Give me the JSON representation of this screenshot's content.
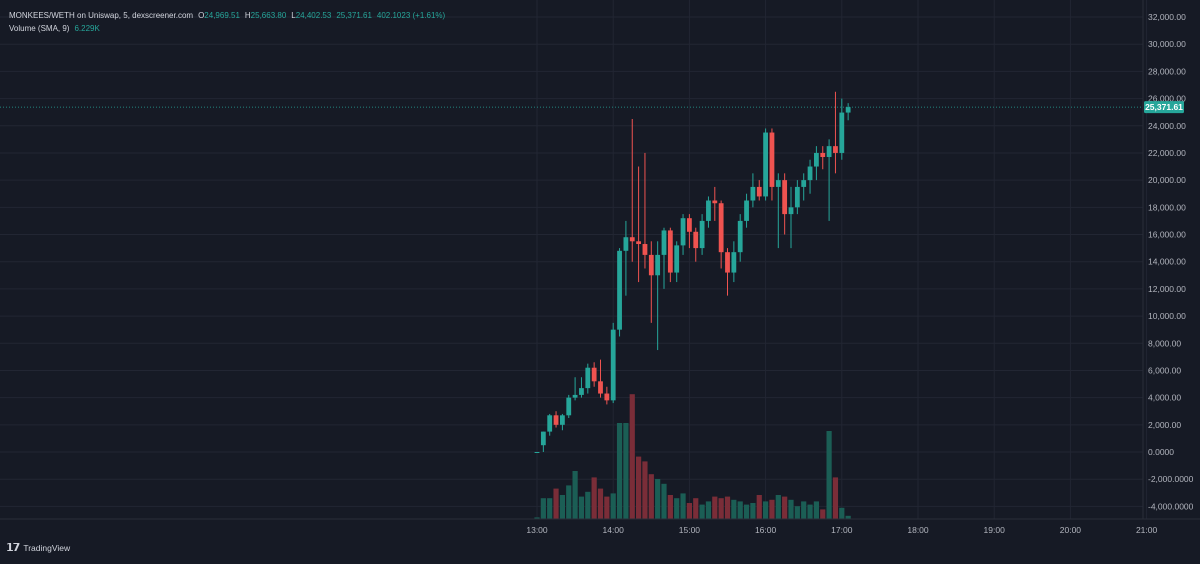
{
  "header": {
    "pair": "MONKEES/WETH on Uniswap, 5, dexscreener.com",
    "o_label": "O",
    "o_value": "24,969.51",
    "h_label": "H",
    "h_value": "25,663.80",
    "l_label": "L",
    "l_value": "24,402.53",
    "c_value": "25,371.61",
    "change": "402.1023 (+1.61%)",
    "volume_label": "Volume (SMA, 9)",
    "volume_value": "6.229K"
  },
  "price_tag": "25,371.61",
  "brand": {
    "name": "TradingView",
    "icon": "tradingview-logo-icon"
  },
  "colors": {
    "up": "#26a69a",
    "down": "#ef5350",
    "vol_up": "#1b5e55",
    "vol_down": "#7a2d38",
    "background": "#161a25"
  },
  "chart_data": {
    "type": "candlestick",
    "interval_minutes": 5,
    "xlabels": [
      "13:00",
      "14:00",
      "15:00",
      "16:00",
      "17:00",
      "18:00",
      "19:00",
      "20:00",
      "21:00"
    ],
    "ylabels": [
      "32,000.00",
      "30,000.00",
      "28,000.00",
      "26,000.00",
      "24,000.00",
      "22,000.00",
      "20,000.00",
      "18,000.00",
      "16,000.00",
      "14,000.00",
      "12,000.00",
      "10,000.00",
      "8,000.00",
      "6,000.00",
      "4,000.00",
      "2,000.00",
      "0.0000",
      "-2,000.0000",
      "-4,000.0000"
    ],
    "ylim": [
      -4500,
      32500
    ],
    "last_price": 25371.61,
    "candles": [
      {
        "t": "13:00",
        "o": 0,
        "h": 0,
        "l": 0,
        "c": 0,
        "v": 0.1
      },
      {
        "t": "13:05",
        "o": 500,
        "h": 1500,
        "l": 0,
        "c": 1500,
        "v": 1.3
      },
      {
        "t": "13:10",
        "o": 1500,
        "h": 2800,
        "l": 1200,
        "c": 2700,
        "v": 1.3
      },
      {
        "t": "13:15",
        "o": 2700,
        "h": 3000,
        "l": 1800,
        "c": 2000,
        "v": 1.9
      },
      {
        "t": "13:20",
        "o": 2000,
        "h": 2800,
        "l": 1600,
        "c": 2700,
        "v": 1.5
      },
      {
        "t": "13:25",
        "o": 2700,
        "h": 4200,
        "l": 2500,
        "c": 4000,
        "v": 2.1
      },
      {
        "t": "13:30",
        "o": 4000,
        "h": 5500,
        "l": 3800,
        "c": 4200,
        "v": 3.0
      },
      {
        "t": "13:35",
        "o": 4200,
        "h": 5500,
        "l": 4000,
        "c": 4700,
        "v": 1.4
      },
      {
        "t": "13:40",
        "o": 4700,
        "h": 6500,
        "l": 4300,
        "c": 6200,
        "v": 1.7
      },
      {
        "t": "13:45",
        "o": 6200,
        "h": 6600,
        "l": 4800,
        "c": 5200,
        "v": 2.6
      },
      {
        "t": "13:50",
        "o": 5200,
        "h": 6800,
        "l": 4000,
        "c": 4300,
        "v": 1.9
      },
      {
        "t": "13:55",
        "o": 4300,
        "h": 4800,
        "l": 3500,
        "c": 3800,
        "v": 1.4
      },
      {
        "t": "14:00",
        "o": 3800,
        "h": 9500,
        "l": 3600,
        "c": 9000,
        "v": 1.6
      },
      {
        "t": "14:05",
        "o": 9000,
        "h": 15000,
        "l": 8500,
        "c": 14800,
        "v": 6.0
      },
      {
        "t": "14:10",
        "o": 14800,
        "h": 17000,
        "l": 11500,
        "c": 15800,
        "v": 6.0
      },
      {
        "t": "14:15",
        "o": 15800,
        "h": 24500,
        "l": 14000,
        "c": 15500,
        "v": 7.8
      },
      {
        "t": "14:20",
        "o": 15500,
        "h": 21000,
        "l": 12500,
        "c": 15300,
        "v": 3.9
      },
      {
        "t": "14:25",
        "o": 15300,
        "h": 22000,
        "l": 13500,
        "c": 14500,
        "v": 3.6
      },
      {
        "t": "14:30",
        "o": 14500,
        "h": 15500,
        "l": 9500,
        "c": 13000,
        "v": 2.8
      },
      {
        "t": "14:35",
        "o": 13000,
        "h": 15500,
        "l": 7500,
        "c": 14500,
        "v": 2.5
      },
      {
        "t": "14:40",
        "o": 14500,
        "h": 16500,
        "l": 12000,
        "c": 16300,
        "v": 2.2
      },
      {
        "t": "14:45",
        "o": 16300,
        "h": 16500,
        "l": 12500,
        "c": 13200,
        "v": 1.5
      },
      {
        "t": "14:50",
        "o": 13200,
        "h": 15500,
        "l": 12500,
        "c": 15200,
        "v": 1.3
      },
      {
        "t": "14:55",
        "o": 15200,
        "h": 17500,
        "l": 14500,
        "c": 17200,
        "v": 1.6
      },
      {
        "t": "15:00",
        "o": 17200,
        "h": 17500,
        "l": 15000,
        "c": 16200,
        "v": 1.0
      },
      {
        "t": "15:05",
        "o": 16200,
        "h": 16500,
        "l": 14000,
        "c": 15000,
        "v": 1.3
      },
      {
        "t": "15:10",
        "o": 15000,
        "h": 17500,
        "l": 14500,
        "c": 17000,
        "v": 0.9
      },
      {
        "t": "15:15",
        "o": 17000,
        "h": 18800,
        "l": 16500,
        "c": 18500,
        "v": 1.1
      },
      {
        "t": "15:20",
        "o": 18500,
        "h": 19500,
        "l": 17000,
        "c": 18300,
        "v": 1.4
      },
      {
        "t": "15:25",
        "o": 18300,
        "h": 18500,
        "l": 13500,
        "c": 14700,
        "v": 1.3
      },
      {
        "t": "15:30",
        "o": 14700,
        "h": 15000,
        "l": 11500,
        "c": 13200,
        "v": 1.4
      },
      {
        "t": "15:35",
        "o": 13200,
        "h": 15500,
        "l": 12500,
        "c": 14700,
        "v": 1.2
      },
      {
        "t": "15:40",
        "o": 14700,
        "h": 17500,
        "l": 14000,
        "c": 17000,
        "v": 1.1
      },
      {
        "t": "15:45",
        "o": 17000,
        "h": 19000,
        "l": 16500,
        "c": 18500,
        "v": 0.9
      },
      {
        "t": "15:50",
        "o": 18500,
        "h": 20500,
        "l": 18000,
        "c": 19500,
        "v": 1.0
      },
      {
        "t": "15:55",
        "o": 19500,
        "h": 20000,
        "l": 18500,
        "c": 18800,
        "v": 1.5
      },
      {
        "t": "16:00",
        "o": 18800,
        "h": 23800,
        "l": 18500,
        "c": 23500,
        "v": 1.1
      },
      {
        "t": "16:05",
        "o": 23500,
        "h": 23800,
        "l": 18500,
        "c": 19500,
        "v": 1.2
      },
      {
        "t": "16:10",
        "o": 19500,
        "h": 20500,
        "l": 15000,
        "c": 20000,
        "v": 1.5
      },
      {
        "t": "16:15",
        "o": 20000,
        "h": 20500,
        "l": 16000,
        "c": 17500,
        "v": 1.4
      },
      {
        "t": "16:20",
        "o": 17500,
        "h": 19500,
        "l": 15000,
        "c": 18000,
        "v": 1.2
      },
      {
        "t": "16:25",
        "o": 18000,
        "h": 20000,
        "l": 17500,
        "c": 19500,
        "v": 0.8
      },
      {
        "t": "16:30",
        "o": 19500,
        "h": 20500,
        "l": 18500,
        "c": 20000,
        "v": 1.1
      },
      {
        "t": "16:35",
        "o": 20000,
        "h": 21500,
        "l": 19000,
        "c": 21000,
        "v": 0.9
      },
      {
        "t": "16:40",
        "o": 21000,
        "h": 22500,
        "l": 20000,
        "c": 22000,
        "v": 1.1
      },
      {
        "t": "16:45",
        "o": 22000,
        "h": 22500,
        "l": 20800,
        "c": 21700,
        "v": 0.6
      },
      {
        "t": "16:50",
        "o": 21700,
        "h": 23000,
        "l": 17000,
        "c": 22500,
        "v": 5.5
      },
      {
        "t": "16:55",
        "o": 22500,
        "h": 26500,
        "l": 20500,
        "c": 22000,
        "v": 2.6
      },
      {
        "t": "17:00",
        "o": 22000,
        "h": 26000,
        "l": 21500,
        "c": 24969.51,
        "v": 0.7
      },
      {
        "t": "17:05",
        "o": 24969.51,
        "h": 25663.8,
        "l": 24402.53,
        "c": 25371.61,
        "v": 0.2
      }
    ]
  }
}
